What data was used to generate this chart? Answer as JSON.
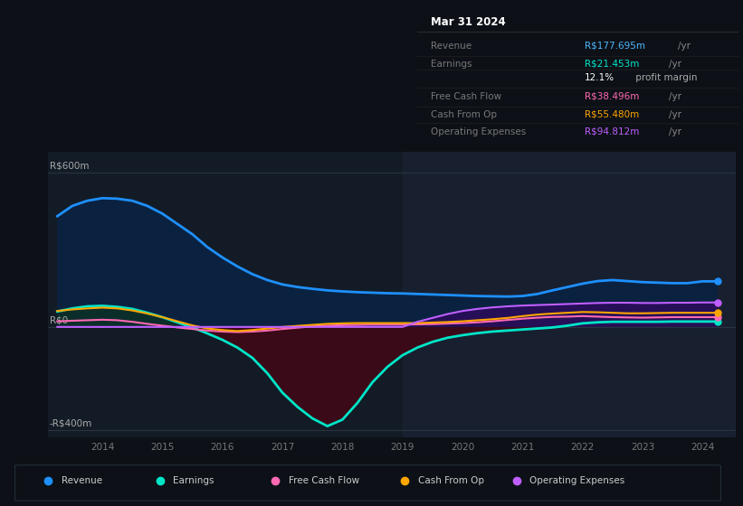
{
  "bg_color": "#0d1117",
  "plot_bg_color": "#131c26",
  "y_label_600": "R$600m",
  "y_label_0": "R$0",
  "y_label_neg400": "-R$400m",
  "ylim": [
    -430,
    680
  ],
  "xlim": [
    2013.1,
    2024.55
  ],
  "info_box": {
    "title": "Mar 31 2024",
    "rows": [
      {
        "label": "Revenue",
        "value": "R$177.695m",
        "unit": "/yr",
        "value_color": "#4db8ff",
        "unit_color": "#888888"
      },
      {
        "label": "Earnings",
        "value": "R$21.453m",
        "unit": "/yr",
        "value_color": "#00e5c8",
        "unit_color": "#888888"
      },
      {
        "label": "",
        "value": "12.1%",
        "unit": " profit margin",
        "value_color": "#ffffff",
        "unit_color": "#aaaaaa"
      },
      {
        "label": "Free Cash Flow",
        "value": "R$38.496m",
        "unit": "/yr",
        "value_color": "#ff69b4",
        "unit_color": "#888888"
      },
      {
        "label": "Cash From Op",
        "value": "R$55.480m",
        "unit": "/yr",
        "value_color": "#ffa500",
        "unit_color": "#888888"
      },
      {
        "label": "Operating Expenses",
        "value": "R$94.812m",
        "unit": "/yr",
        "value_color": "#bf5fff",
        "unit_color": "#888888"
      }
    ]
  },
  "series": {
    "revenue": {
      "color": "#1e90ff",
      "fill_color": "#0a2240",
      "line_width": 2.0,
      "x": [
        2013.25,
        2013.5,
        2013.75,
        2014.0,
        2014.25,
        2014.5,
        2014.75,
        2015.0,
        2015.25,
        2015.5,
        2015.75,
        2016.0,
        2016.25,
        2016.5,
        2016.75,
        2017.0,
        2017.25,
        2017.5,
        2017.75,
        2018.0,
        2018.25,
        2018.5,
        2018.75,
        2019.0,
        2019.25,
        2019.5,
        2019.75,
        2020.0,
        2020.25,
        2020.5,
        2020.75,
        2021.0,
        2021.25,
        2021.5,
        2021.75,
        2022.0,
        2022.25,
        2022.5,
        2022.75,
        2023.0,
        2023.25,
        2023.5,
        2023.75,
        2024.0,
        2024.25
      ],
      "y": [
        430,
        470,
        490,
        500,
        498,
        490,
        470,
        440,
        400,
        360,
        310,
        270,
        235,
        205,
        182,
        165,
        155,
        148,
        142,
        138,
        135,
        133,
        131,
        130,
        128,
        126,
        124,
        122,
        120,
        119,
        118,
        120,
        128,
        142,
        155,
        168,
        178,
        182,
        178,
        174,
        172,
        170,
        170,
        177,
        177
      ]
    },
    "earnings": {
      "color": "#00e5c8",
      "line_width": 2.0,
      "x": [
        2013.25,
        2013.5,
        2013.75,
        2014.0,
        2014.25,
        2014.5,
        2014.75,
        2015.0,
        2015.25,
        2015.5,
        2015.75,
        2016.0,
        2016.25,
        2016.5,
        2016.75,
        2017.0,
        2017.25,
        2017.5,
        2017.75,
        2018.0,
        2018.25,
        2018.5,
        2018.75,
        2019.0,
        2019.25,
        2019.5,
        2019.75,
        2020.0,
        2020.25,
        2020.5,
        2020.75,
        2021.0,
        2021.25,
        2021.5,
        2021.75,
        2022.0,
        2022.25,
        2022.5,
        2022.75,
        2023.0,
        2023.25,
        2023.5,
        2023.75,
        2024.0,
        2024.25
      ],
      "y": [
        60,
        72,
        80,
        82,
        78,
        70,
        55,
        38,
        18,
        -2,
        -25,
        -50,
        -80,
        -120,
        -180,
        -255,
        -310,
        -355,
        -385,
        -360,
        -295,
        -215,
        -155,
        -110,
        -80,
        -58,
        -42,
        -32,
        -24,
        -18,
        -14,
        -10,
        -6,
        -2,
        5,
        14,
        18,
        20,
        20,
        20,
        20,
        21,
        21,
        21,
        21
      ]
    },
    "free_cash_flow": {
      "color": "#ff69b4",
      "line_width": 1.5,
      "x": [
        2013.25,
        2013.5,
        2013.75,
        2014.0,
        2014.25,
        2014.5,
        2014.75,
        2015.0,
        2015.25,
        2015.5,
        2015.75,
        2016.0,
        2016.25,
        2016.5,
        2016.75,
        2017.0,
        2017.25,
        2017.5,
        2017.75,
        2018.0,
        2018.25,
        2018.5,
        2018.75,
        2019.0,
        2019.25,
        2019.5,
        2019.75,
        2020.0,
        2020.25,
        2020.5,
        2020.75,
        2021.0,
        2021.25,
        2021.5,
        2021.75,
        2022.0,
        2022.25,
        2022.5,
        2022.75,
        2023.0,
        2023.25,
        2023.5,
        2023.75,
        2024.0,
        2024.25
      ],
      "y": [
        22,
        24,
        26,
        28,
        26,
        20,
        12,
        5,
        -2,
        -8,
        -14,
        -18,
        -20,
        -18,
        -14,
        -8,
        -3,
        2,
        5,
        7,
        8,
        9,
        9,
        9,
        10,
        11,
        13,
        15,
        18,
        22,
        27,
        32,
        36,
        39,
        40,
        42,
        40,
        38,
        37,
        36,
        37,
        38,
        38,
        38,
        38
      ]
    },
    "cash_from_op": {
      "color": "#ffa500",
      "line_width": 1.5,
      "x": [
        2013.25,
        2013.5,
        2013.75,
        2014.0,
        2014.25,
        2014.5,
        2014.75,
        2015.0,
        2015.25,
        2015.5,
        2015.75,
        2016.0,
        2016.25,
        2016.5,
        2016.75,
        2017.0,
        2017.25,
        2017.5,
        2017.75,
        2018.0,
        2018.25,
        2018.5,
        2018.75,
        2019.0,
        2019.25,
        2019.5,
        2019.75,
        2020.0,
        2020.25,
        2020.5,
        2020.75,
        2021.0,
        2021.25,
        2021.5,
        2021.75,
        2022.0,
        2022.25,
        2022.5,
        2022.75,
        2023.0,
        2023.25,
        2023.5,
        2023.75,
        2024.0,
        2024.25
      ],
      "y": [
        62,
        68,
        72,
        75,
        72,
        64,
        52,
        38,
        22,
        6,
        -6,
        -12,
        -16,
        -12,
        -6,
        0,
        4,
        8,
        12,
        14,
        15,
        15,
        15,
        15,
        15,
        17,
        19,
        22,
        26,
        30,
        35,
        42,
        48,
        52,
        55,
        58,
        57,
        55,
        53,
        53,
        54,
        55,
        55,
        55,
        55
      ]
    },
    "operating_expenses": {
      "color": "#bf5fff",
      "fill_color": "#2a0d5a",
      "line_width": 1.5,
      "x": [
        2013.25,
        2013.5,
        2013.75,
        2014.0,
        2014.25,
        2014.5,
        2014.75,
        2015.0,
        2015.25,
        2015.5,
        2015.75,
        2016.0,
        2016.25,
        2016.5,
        2016.75,
        2017.0,
        2017.25,
        2017.5,
        2017.75,
        2018.0,
        2018.25,
        2018.5,
        2018.75,
        2019.0,
        2019.25,
        2019.5,
        2019.75,
        2020.0,
        2020.25,
        2020.5,
        2020.75,
        2021.0,
        2021.25,
        2021.5,
        2021.75,
        2022.0,
        2022.25,
        2022.5,
        2022.75,
        2023.0,
        2023.25,
        2023.5,
        2023.75,
        2024.0,
        2024.25
      ],
      "y": [
        0,
        0,
        0,
        0,
        0,
        0,
        0,
        0,
        0,
        0,
        0,
        0,
        0,
        0,
        0,
        0,
        0,
        0,
        0,
        0,
        0,
        0,
        0,
        0,
        20,
        35,
        50,
        62,
        70,
        76,
        80,
        83,
        85,
        87,
        89,
        91,
        93,
        94,
        94,
        93,
        93,
        94,
        94,
        95,
        95
      ]
    }
  },
  "legend": [
    {
      "label": "Revenue",
      "color": "#1e90ff"
    },
    {
      "label": "Earnings",
      "color": "#00e5c8"
    },
    {
      "label": "Free Cash Flow",
      "color": "#ff69b4"
    },
    {
      "label": "Cash From Op",
      "color": "#ffa500"
    },
    {
      "label": "Operating Expenses",
      "color": "#bf5fff"
    }
  ],
  "highlight_x_start": 2019.0,
  "highlight_x_end": 2024.55,
  "highlight_color": "#182030"
}
